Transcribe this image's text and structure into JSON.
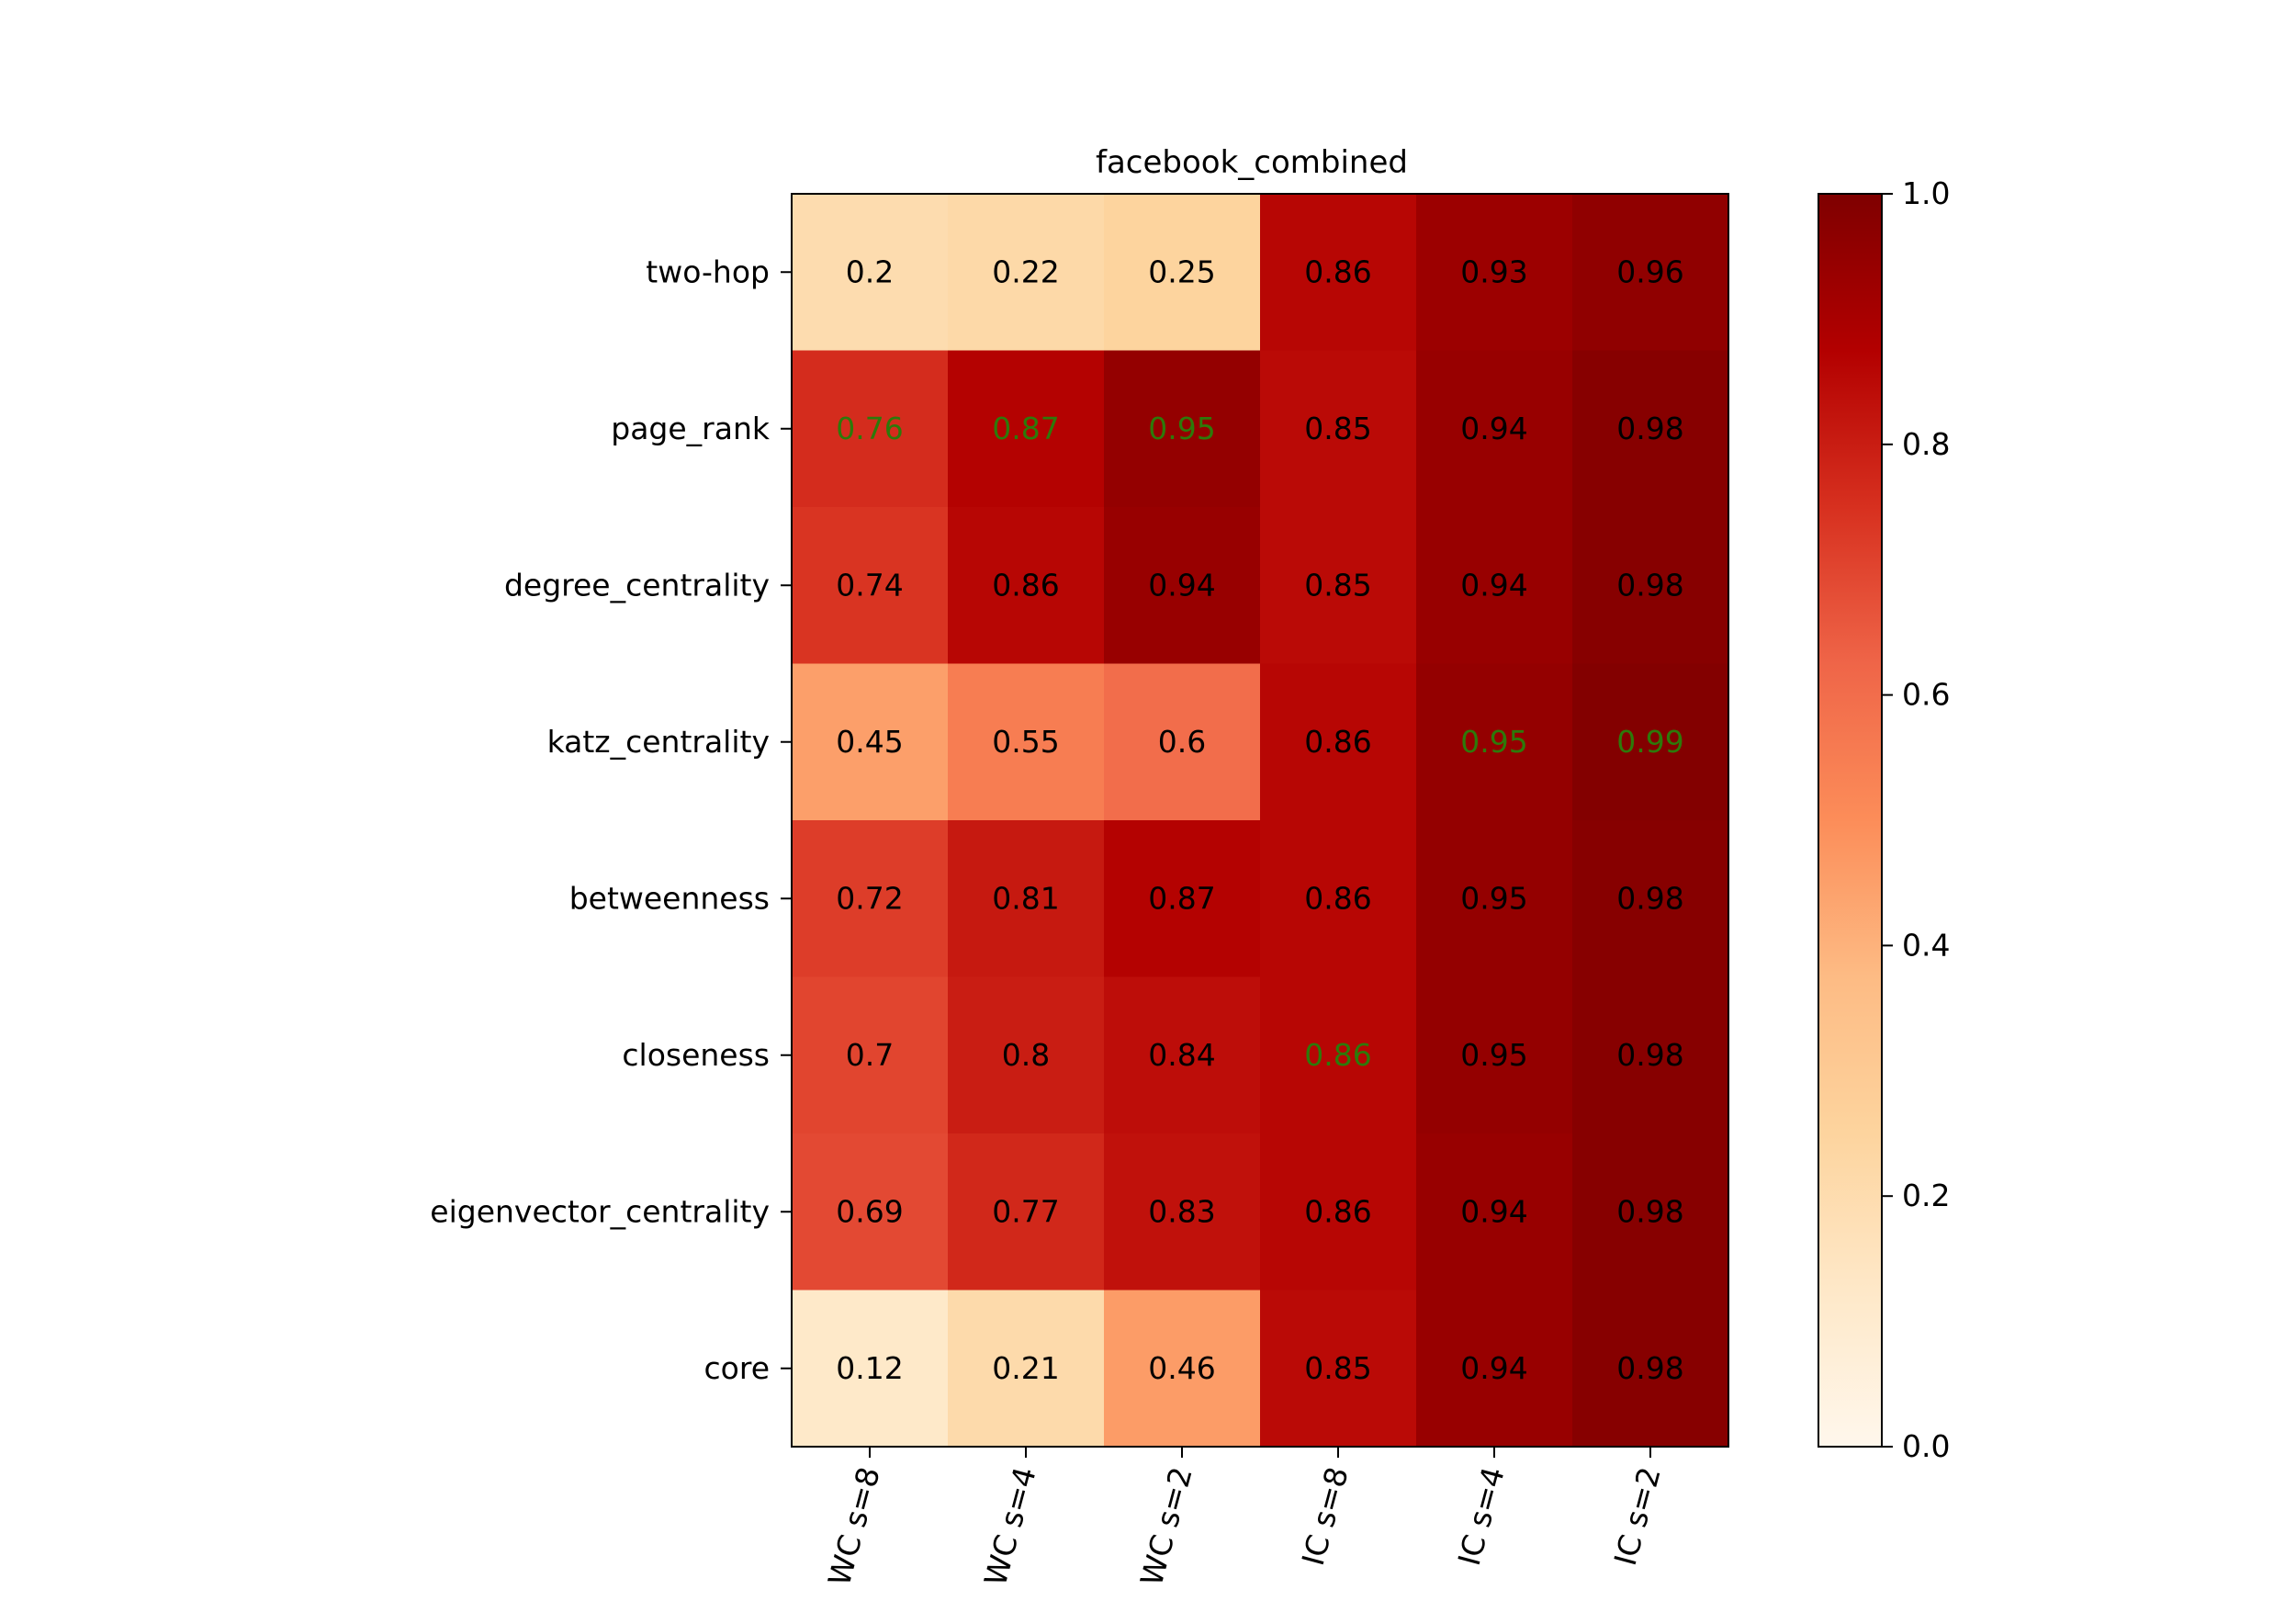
{
  "chart_data": {
    "type": "heatmap",
    "title": "facebook_combined",
    "xlabel": "",
    "ylabel": "",
    "x_categories": [
      "WC s=8",
      "WC s=4",
      "WC s=2",
      "IC s=8",
      "IC s=4",
      "IC s=2"
    ],
    "y_categories": [
      "two-hop",
      "page_rank",
      "degree_centrality",
      "katz_centrality",
      "betweenness",
      "closeness",
      "eigenvector_centrality",
      "core"
    ],
    "values": [
      [
        0.2,
        0.22,
        0.25,
        0.86,
        0.93,
        0.96
      ],
      [
        0.76,
        0.87,
        0.95,
        0.85,
        0.94,
        0.98
      ],
      [
        0.74,
        0.86,
        0.94,
        0.85,
        0.94,
        0.98
      ],
      [
        0.45,
        0.55,
        0.6,
        0.86,
        0.95,
        0.99
      ],
      [
        0.72,
        0.81,
        0.87,
        0.86,
        0.95,
        0.98
      ],
      [
        0.7,
        0.8,
        0.84,
        0.86,
        0.95,
        0.98
      ],
      [
        0.69,
        0.77,
        0.83,
        0.86,
        0.94,
        0.98
      ],
      [
        0.12,
        0.21,
        0.46,
        0.85,
        0.94,
        0.98
      ]
    ],
    "highlighted_cells": [
      [
        1,
        0
      ],
      [
        1,
        1
      ],
      [
        1,
        2
      ],
      [
        3,
        4
      ],
      [
        3,
        5
      ],
      [
        5,
        3
      ]
    ],
    "highlight_color": "#2d7a0a",
    "label_color": "#000000",
    "colormap": "OrRd",
    "vmin": 0.0,
    "vmax": 1.0,
    "colorbar": {
      "ticks": [
        0.0,
        0.2,
        0.4,
        0.6,
        0.8,
        1.0
      ],
      "tick_labels": [
        "0.0",
        "0.2",
        "0.4",
        "0.6",
        "0.8",
        "1.0"
      ],
      "placement": "right"
    },
    "grid": false
  }
}
